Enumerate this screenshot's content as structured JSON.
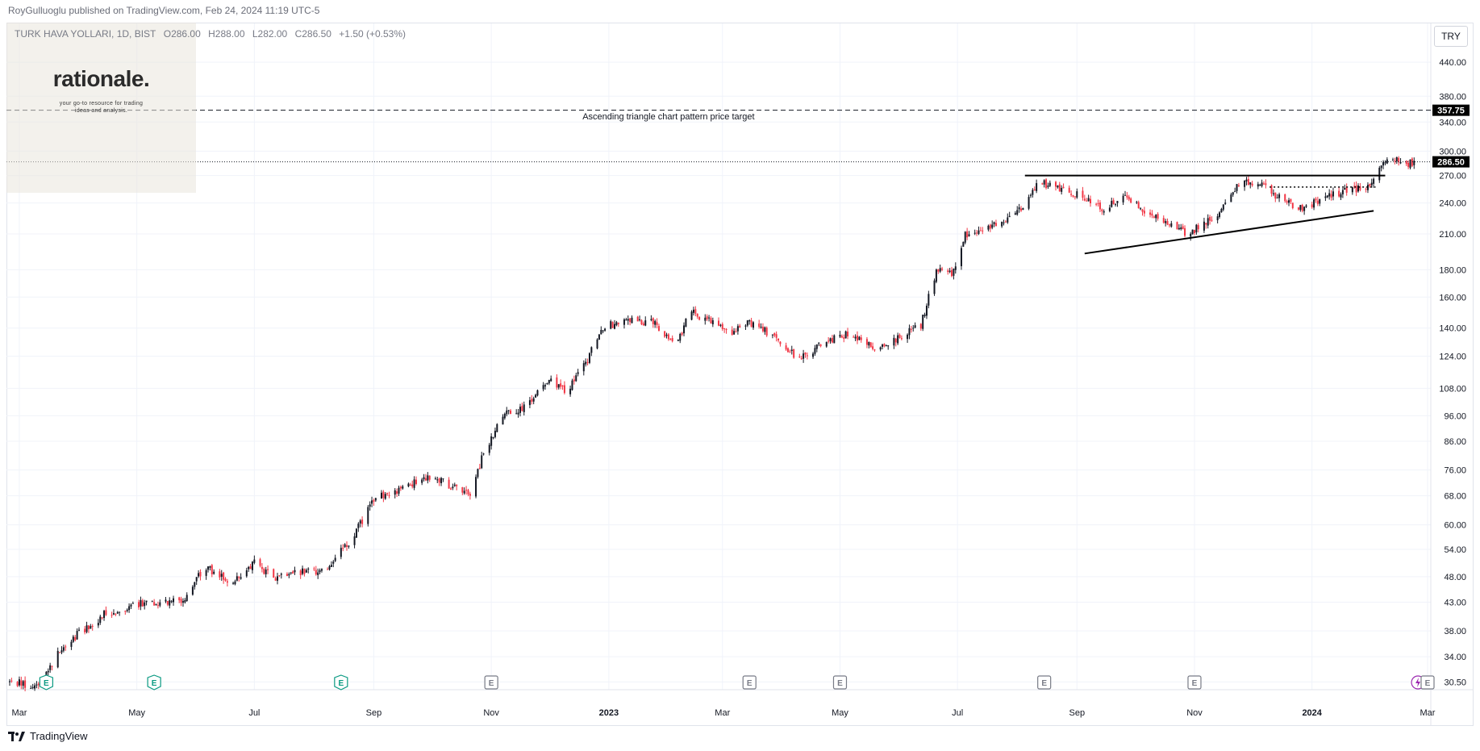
{
  "header": {
    "published": "RoyGulluoglu published on TradingView.com, Feb 24, 2024 11:19 UTC-5"
  },
  "legend": {
    "symbol": "TURK HAVA YOLLARI, 1D, BIST",
    "open": "O286.00",
    "high": "H288.00",
    "low": "L282.00",
    "close": "C286.50",
    "change": "+1.50 (+0.53%)"
  },
  "logo": {
    "name": "rationale.",
    "tagline_1": "your go-to resource for trading",
    "tagline_2": "ideas and analysis."
  },
  "currency": "TRY",
  "footer": {
    "brand": "TradingView"
  },
  "colors": {
    "up": "#131722",
    "down": "#f23645",
    "grid": "#f0f3fa",
    "axis_text": "#131722",
    "earnings_green": "#089981",
    "earnings_grey": "#787b86",
    "last_price_bg": "#000000"
  },
  "chart_data": {
    "type": "candlestick",
    "scale": "log",
    "ylim": [
      29.5,
      520
    ],
    "x_start": "2022-02-24",
    "x_end": "2024-03-01",
    "x_ticks": [
      {
        "date": "2022-03-01",
        "label": "Mar",
        "bold": false
      },
      {
        "date": "2022-05-01",
        "label": "May",
        "bold": false
      },
      {
        "date": "2022-07-01",
        "label": "Jul",
        "bold": false
      },
      {
        "date": "2022-09-01",
        "label": "Sep",
        "bold": false
      },
      {
        "date": "2022-11-01",
        "label": "Nov",
        "bold": false
      },
      {
        "date": "2023-01-01",
        "label": "2023",
        "bold": true
      },
      {
        "date": "2023-03-01",
        "label": "Mar",
        "bold": false
      },
      {
        "date": "2023-05-01",
        "label": "May",
        "bold": false
      },
      {
        "date": "2023-07-01",
        "label": "Jul",
        "bold": false
      },
      {
        "date": "2023-09-01",
        "label": "Sep",
        "bold": false
      },
      {
        "date": "2023-11-01",
        "label": "Nov",
        "bold": false
      },
      {
        "date": "2024-01-01",
        "label": "2024",
        "bold": true
      },
      {
        "date": "2024-03-01",
        "label": "Mar",
        "bold": false
      }
    ],
    "y_ticks": [
      "440.00",
      "380.00",
      "340.00",
      "300.00",
      "270.00",
      "240.00",
      "210.00",
      "180.00",
      "160.00",
      "140.00",
      "124.00",
      "108.00",
      "96.00",
      "86.00",
      "76.00",
      "68.00",
      "60.00",
      "54.00",
      "48.00",
      "43.00",
      "38.00",
      "34.00",
      "30.50"
    ],
    "price_path": [
      {
        "date": "2022-02-24",
        "price": 30.5
      },
      {
        "date": "2022-03-10",
        "price": 30.0
      },
      {
        "date": "2022-03-25",
        "price": 36.0
      },
      {
        "date": "2022-04-15",
        "price": 41.0
      },
      {
        "date": "2022-05-05",
        "price": 43.0
      },
      {
        "date": "2022-05-25",
        "price": 43.5
      },
      {
        "date": "2022-06-05",
        "price": 50.0
      },
      {
        "date": "2022-06-20",
        "price": 47.0
      },
      {
        "date": "2022-07-01",
        "price": 51.0
      },
      {
        "date": "2022-07-12",
        "price": 47.5
      },
      {
        "date": "2022-07-25",
        "price": 49.0
      },
      {
        "date": "2022-08-05",
        "price": 49.0
      },
      {
        "date": "2022-08-20",
        "price": 56.0
      },
      {
        "date": "2022-09-01",
        "price": 67.0
      },
      {
        "date": "2022-09-15",
        "price": 70.0
      },
      {
        "date": "2022-09-30",
        "price": 74.0
      },
      {
        "date": "2022-10-15",
        "price": 70.0
      },
      {
        "date": "2022-10-22",
        "price": 69.0
      },
      {
        "date": "2022-10-28",
        "price": 82.0
      },
      {
        "date": "2022-11-08",
        "price": 97.0
      },
      {
        "date": "2022-11-20",
        "price": 100.0
      },
      {
        "date": "2022-11-30",
        "price": 112.0
      },
      {
        "date": "2022-12-10",
        "price": 106.0
      },
      {
        "date": "2022-12-20",
        "price": 120.0
      },
      {
        "date": "2022-12-28",
        "price": 140.0
      },
      {
        "date": "2023-01-10",
        "price": 145.0
      },
      {
        "date": "2023-01-25",
        "price": 143.0
      },
      {
        "date": "2023-02-05",
        "price": 130.0
      },
      {
        "date": "2023-02-12",
        "price": 150.0
      },
      {
        "date": "2023-02-22",
        "price": 145.0
      },
      {
        "date": "2023-03-05",
        "price": 137.0
      },
      {
        "date": "2023-03-15",
        "price": 144.0
      },
      {
        "date": "2023-03-25",
        "price": 137.0
      },
      {
        "date": "2023-04-10",
        "price": 122.0
      },
      {
        "date": "2023-04-20",
        "price": 130.0
      },
      {
        "date": "2023-05-05",
        "price": 137.0
      },
      {
        "date": "2023-05-20",
        "price": 128.0
      },
      {
        "date": "2023-06-01",
        "price": 135.0
      },
      {
        "date": "2023-06-12",
        "price": 142.0
      },
      {
        "date": "2023-06-20",
        "price": 180.0
      },
      {
        "date": "2023-06-28",
        "price": 176.0
      },
      {
        "date": "2023-07-05",
        "price": 210.0
      },
      {
        "date": "2023-07-15",
        "price": 215.0
      },
      {
        "date": "2023-07-25",
        "price": 222.0
      },
      {
        "date": "2023-08-05",
        "price": 238.0
      },
      {
        "date": "2023-08-12",
        "price": 262.0
      },
      {
        "date": "2023-08-25",
        "price": 255.0
      },
      {
        "date": "2023-09-05",
        "price": 245.0
      },
      {
        "date": "2023-09-15",
        "price": 232.0
      },
      {
        "date": "2023-09-25",
        "price": 250.0
      },
      {
        "date": "2023-10-05",
        "price": 232.0
      },
      {
        "date": "2023-10-15",
        "price": 225.0
      },
      {
        "date": "2023-10-27",
        "price": 210.0
      },
      {
        "date": "2023-11-05",
        "price": 218.0
      },
      {
        "date": "2023-11-15",
        "price": 232.0
      },
      {
        "date": "2023-11-25",
        "price": 265.0
      },
      {
        "date": "2023-12-05",
        "price": 260.0
      },
      {
        "date": "2023-12-15",
        "price": 246.0
      },
      {
        "date": "2023-12-25",
        "price": 233.0
      },
      {
        "date": "2024-01-05",
        "price": 243.0
      },
      {
        "date": "2024-01-20",
        "price": 254.0
      },
      {
        "date": "2024-01-30",
        "price": 258.0
      },
      {
        "date": "2024-02-05",
        "price": 283.0
      },
      {
        "date": "2024-02-12",
        "price": 292.0
      },
      {
        "date": "2024-02-20",
        "price": 284.0
      },
      {
        "date": "2024-02-23",
        "price": 286.5
      }
    ],
    "horizontal_lines": [
      {
        "price": 357.75,
        "style": "dashed",
        "label": "357.75"
      },
      {
        "price": 286.5,
        "style": "dotted",
        "label": "286.50"
      }
    ],
    "drawings": [
      {
        "name": "resistance-line",
        "from": {
          "date": "2023-08-05",
          "price": 270.0
        },
        "to": {
          "date": "2024-02-08",
          "price": 270.0
        },
        "style": "solid"
      },
      {
        "name": "support-line",
        "from": {
          "date": "2023-09-05",
          "price": 193.0
        },
        "to": {
          "date": "2024-02-02",
          "price": 232.0
        },
        "style": "solid"
      },
      {
        "name": "breakout-line",
        "from": {
          "date": "2023-12-10",
          "price": 257.0
        },
        "to": {
          "date": "2024-02-03",
          "price": 257.0
        },
        "style": "dotted"
      }
    ],
    "annotations": [
      {
        "text": "Ascending triangle chart pattern price target",
        "date": "2023-02-01",
        "price": 344.0
      }
    ],
    "events": [
      {
        "date": "2022-03-15",
        "type": "earnings",
        "color": "green"
      },
      {
        "date": "2022-05-10",
        "type": "earnings",
        "color": "green"
      },
      {
        "date": "2022-08-15",
        "type": "earnings",
        "color": "green"
      },
      {
        "date": "2022-11-01",
        "type": "earnings",
        "color": "grey"
      },
      {
        "date": "2023-03-15",
        "type": "earnings",
        "color": "grey"
      },
      {
        "date": "2023-05-01",
        "type": "earnings",
        "color": "grey"
      },
      {
        "date": "2023-08-15",
        "type": "earnings",
        "color": "grey"
      },
      {
        "date": "2023-11-01",
        "type": "earnings",
        "color": "grey"
      },
      {
        "date": "2024-02-25",
        "type": "dividend",
        "color": "purple"
      },
      {
        "date": "2024-03-01",
        "type": "earnings",
        "color": "grey"
      }
    ]
  }
}
